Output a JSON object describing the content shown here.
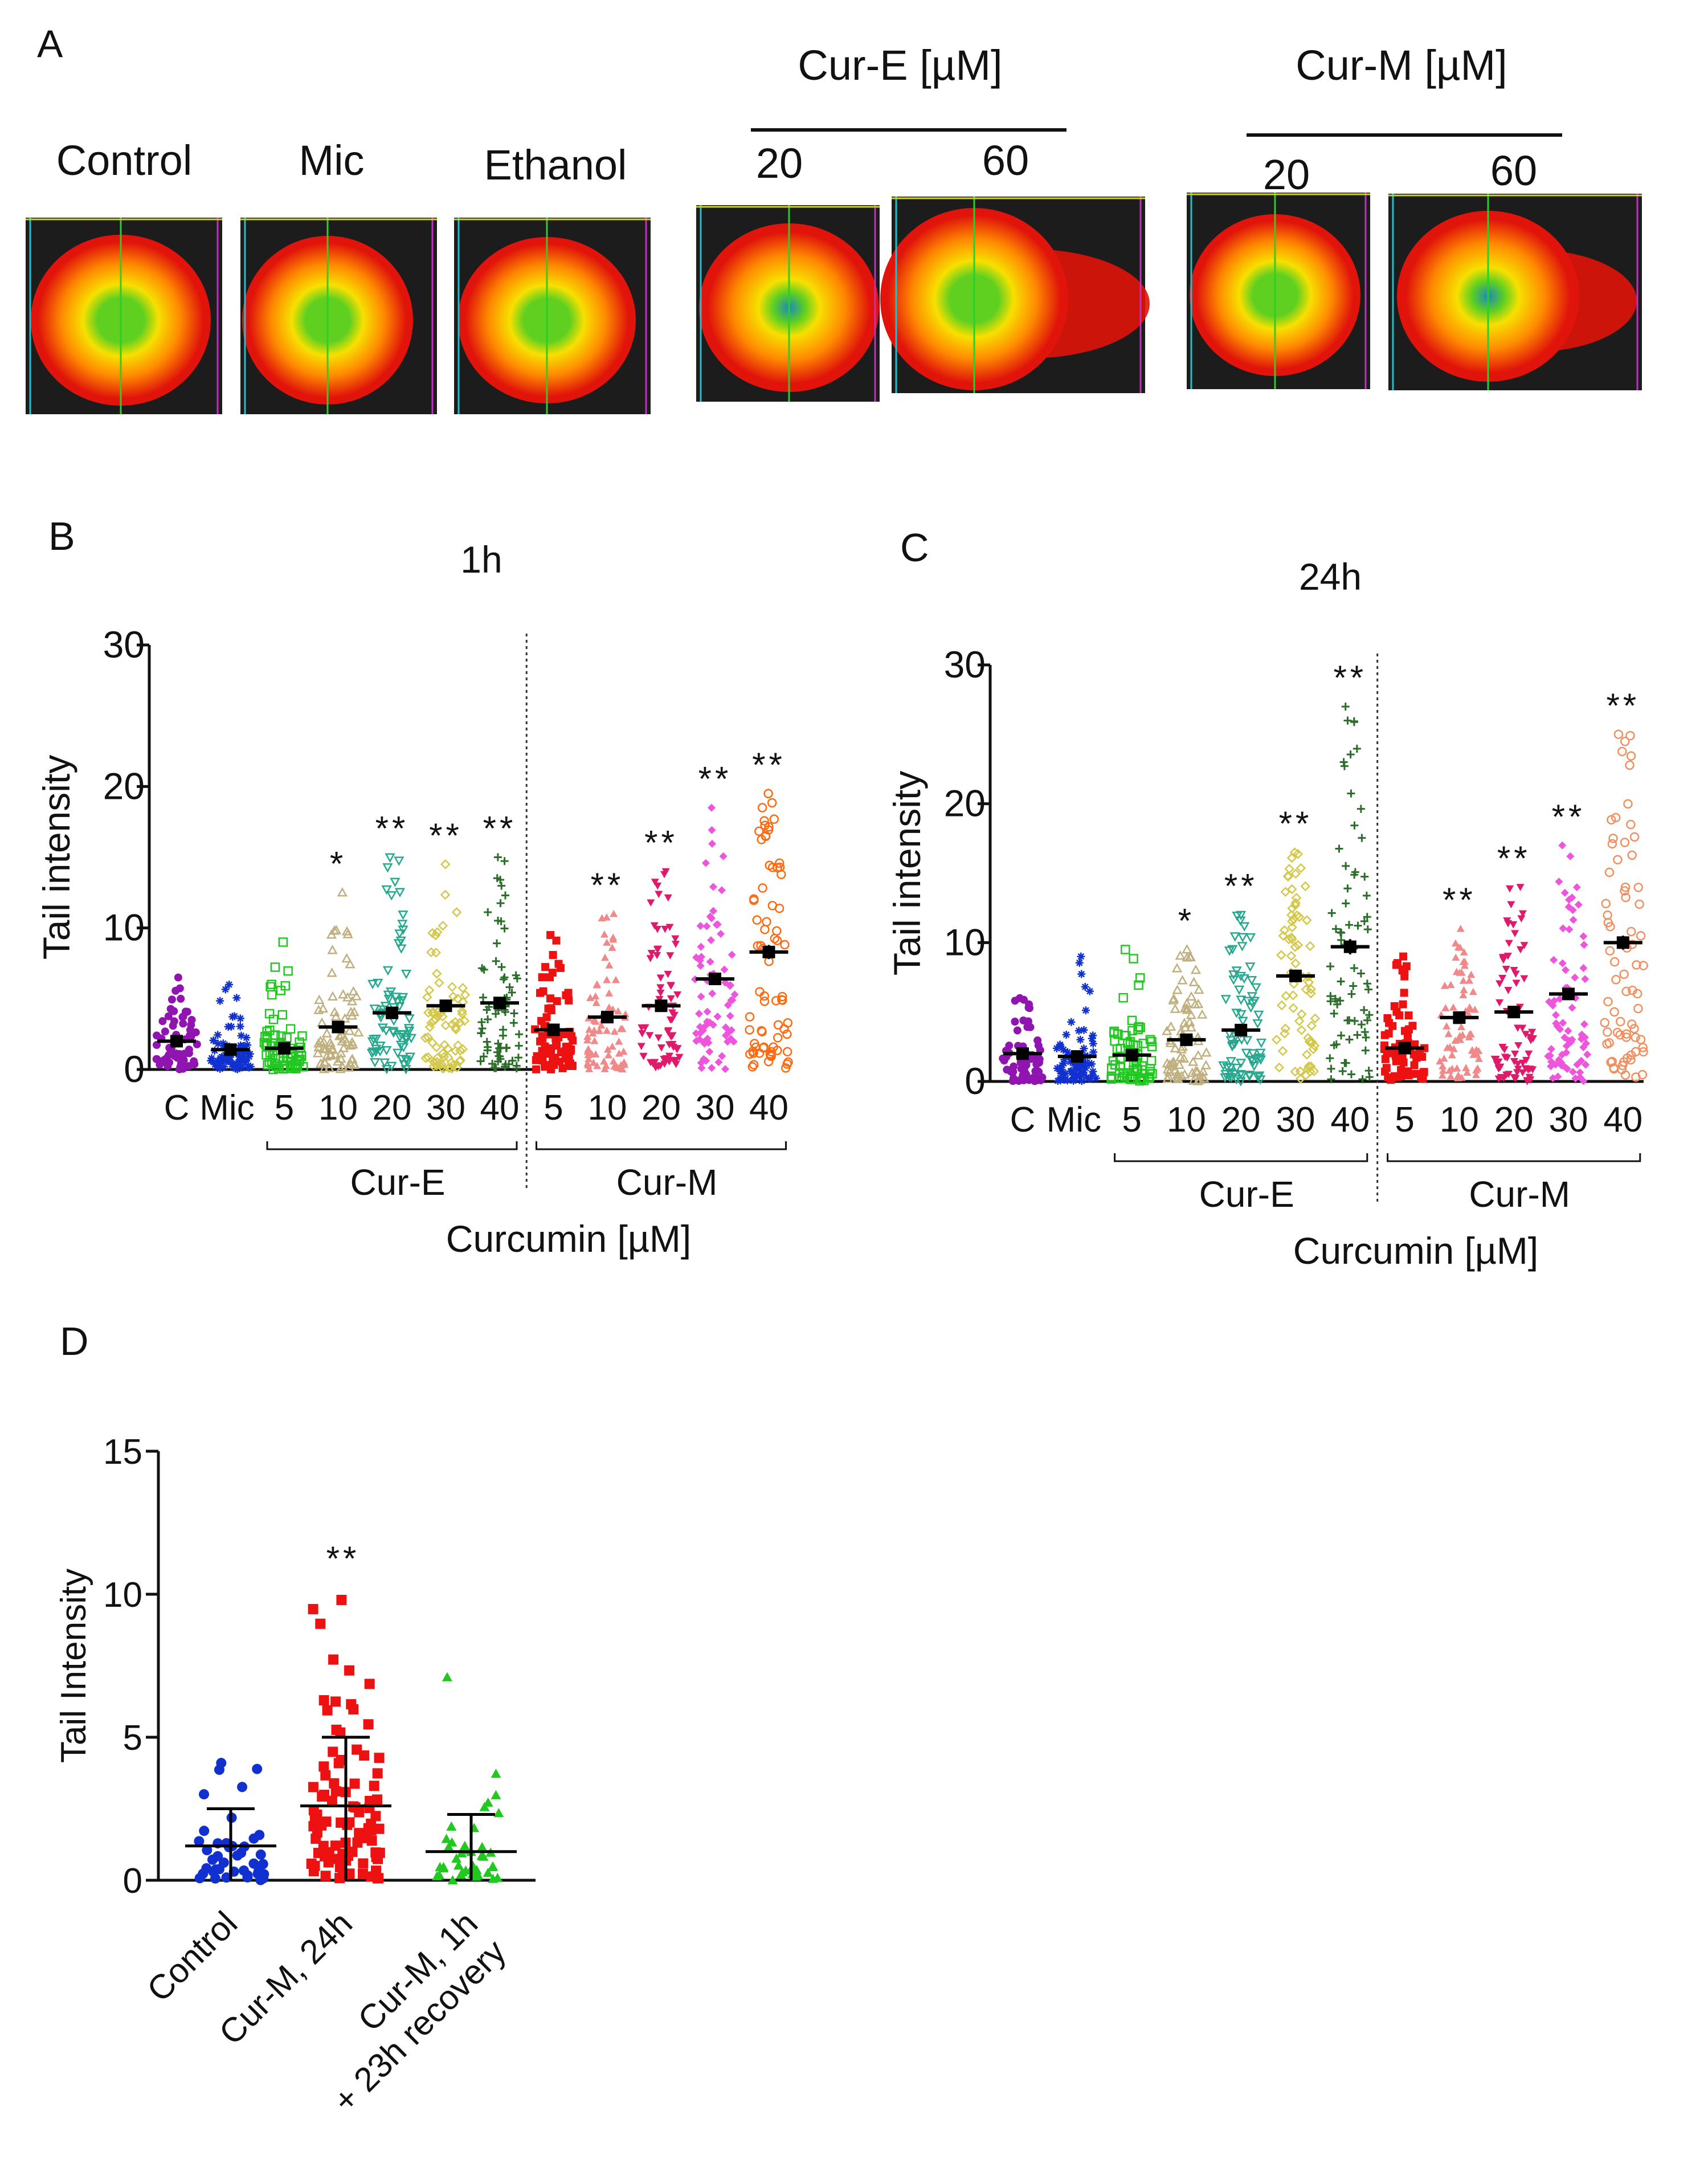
{
  "panel_a": {
    "label": "A",
    "group_left": [
      "Control",
      "Mic",
      "Ethanol"
    ],
    "cur_e": {
      "title": "Cur-E [µM]",
      "doses": [
        "20",
        "60"
      ]
    },
    "cur_m": {
      "title": "Cur-M [µM]",
      "doses": [
        "20",
        "60"
      ]
    },
    "heatmap_colors": {
      "bg": "#1c1c1c",
      "outer": "#e0140a",
      "mid": "#ff8a00",
      "inner": "#f7e000",
      "core": "#5fd020",
      "deep": "#1a8ab8"
    }
  },
  "chart_data": [
    {
      "panel": "B",
      "type": "scatter",
      "title": "1h",
      "ylabel": "Tail  intensity",
      "xlabel": "Curcumin [µM]",
      "ylim": [
        0,
        30
      ],
      "yticks": [
        "0",
        "10",
        "20",
        "30"
      ],
      "categories": [
        "C",
        "Mic",
        "5",
        "10",
        "20",
        "30",
        "40",
        "5",
        "10",
        "20",
        "30",
        "40"
      ],
      "groups": [
        {
          "name": "Cur-E",
          "from": 2,
          "to": 6
        },
        {
          "name": "Cur-M",
          "from": 7,
          "to": 11
        }
      ],
      "series": [
        {
          "name": "C",
          "mean": 2.0,
          "sem": 0.25,
          "max": 6.5,
          "color": "#8f14b0",
          "marker": "dot",
          "sig": ""
        },
        {
          "name": "Mic",
          "mean": 1.4,
          "sem": 0.2,
          "max": 6.0,
          "color": "#1030d0",
          "marker": "star",
          "sig": ""
        },
        {
          "name": "Cur-E 5",
          "mean": 1.5,
          "sem": 0.2,
          "max": 9.0,
          "color": "#20c820",
          "marker": "square-open",
          "sig": ""
        },
        {
          "name": "Cur-E 10",
          "mean": 3.0,
          "sem": 0.3,
          "max": 12.5,
          "color": "#c0b080",
          "marker": "triangle-open",
          "sig": "*"
        },
        {
          "name": "Cur-E 20",
          "mean": 4.0,
          "sem": 0.35,
          "max": 15.0,
          "color": "#26a88e",
          "marker": "triangle-down-open",
          "sig": "**"
        },
        {
          "name": "Cur-E 30",
          "mean": 4.5,
          "sem": 0.4,
          "max": 14.5,
          "color": "#d4c84a",
          "marker": "diamond-open",
          "sig": "**"
        },
        {
          "name": "Cur-E 40",
          "mean": 4.7,
          "sem": 0.4,
          "max": 15.0,
          "color": "#2a6e2a",
          "marker": "plus",
          "sig": "**"
        },
        {
          "name": "Cur-M 5",
          "mean": 2.8,
          "sem": 0.3,
          "max": 9.5,
          "color": "#ee1111",
          "marker": "square",
          "sig": ""
        },
        {
          "name": "Cur-M 10",
          "mean": 3.7,
          "sem": 0.3,
          "max": 11.0,
          "color": "#f08a8a",
          "marker": "triangle",
          "sig": "**"
        },
        {
          "name": "Cur-M 20",
          "mean": 4.5,
          "sem": 0.4,
          "max": 14.0,
          "color": "#e01a6a",
          "marker": "triangle-down",
          "sig": "**"
        },
        {
          "name": "Cur-M 30",
          "mean": 6.4,
          "sem": 0.4,
          "max": 18.5,
          "color": "#ee55dd",
          "marker": "diamond",
          "sig": "**"
        },
        {
          "name": "Cur-M 40",
          "mean": 8.3,
          "sem": 0.5,
          "max": 19.5,
          "color": "#ff6a10",
          "marker": "circle-open",
          "sig": "**"
        }
      ]
    },
    {
      "panel": "C",
      "type": "scatter",
      "title": "24h",
      "ylabel": "Tail  intensity",
      "xlabel": "Curcumin [µM]",
      "ylim": [
        0,
        30
      ],
      "yticks": [
        "0",
        "10",
        "20",
        "30"
      ],
      "categories": [
        "C",
        "Mic",
        "5",
        "10",
        "20",
        "30",
        "40",
        "5",
        "10",
        "20",
        "30",
        "40"
      ],
      "groups": [
        {
          "name": "Cur-E",
          "from": 2,
          "to": 6
        },
        {
          "name": "Cur-M",
          "from": 7,
          "to": 11
        }
      ],
      "series": [
        {
          "name": "C",
          "mean": 2.0,
          "sem": 0.25,
          "max": 6.0,
          "color": "#8f14b0",
          "marker": "dot",
          "sig": ""
        },
        {
          "name": "Mic",
          "mean": 1.8,
          "sem": 0.25,
          "max": 9.0,
          "color": "#1030d0",
          "marker": "star",
          "sig": ""
        },
        {
          "name": "Cur-E 5",
          "mean": 1.9,
          "sem": 0.25,
          "max": 9.5,
          "color": "#20c820",
          "marker": "square-open",
          "sig": ""
        },
        {
          "name": "Cur-E 10",
          "mean": 3.0,
          "sem": 0.3,
          "max": 9.5,
          "color": "#c0b080",
          "marker": "triangle-open",
          "sig": "*"
        },
        {
          "name": "Cur-E 20",
          "mean": 3.7,
          "sem": 0.35,
          "max": 12.0,
          "color": "#26a88e",
          "marker": "triangle-down-open",
          "sig": "**"
        },
        {
          "name": "Cur-E 30",
          "mean": 7.6,
          "sem": 0.45,
          "max": 16.5,
          "color": "#d4c84a",
          "marker": "diamond-open",
          "sig": "**"
        },
        {
          "name": "Cur-E 40",
          "mean": 9.7,
          "sem": 0.55,
          "max": 27.0,
          "color": "#2a6e2a",
          "marker": "plus",
          "sig": "**"
        },
        {
          "name": "Cur-M 5",
          "mean": 2.4,
          "sem": 0.3,
          "max": 9.0,
          "color": "#ee1111",
          "marker": "square",
          "sig": ""
        },
        {
          "name": "Cur-M 10",
          "mean": 4.6,
          "sem": 0.35,
          "max": 11.0,
          "color": "#f08a8a",
          "marker": "triangle",
          "sig": "**"
        },
        {
          "name": "Cur-M 20",
          "mean": 5.0,
          "sem": 0.4,
          "max": 14.0,
          "color": "#e01a6a",
          "marker": "triangle-down",
          "sig": "**"
        },
        {
          "name": "Cur-M 30",
          "mean": 6.3,
          "sem": 0.45,
          "max": 17.0,
          "color": "#ee55dd",
          "marker": "diamond",
          "sig": "**"
        },
        {
          "name": "Cur-M 40",
          "mean": 10.0,
          "sem": 0.5,
          "max": 25.0,
          "color": "#f09060",
          "marker": "circle-open",
          "sig": "**"
        }
      ]
    },
    {
      "panel": "D",
      "type": "scatter",
      "title": "",
      "ylabel": "Tail Intensity",
      "ylim": [
        0,
        15
      ],
      "yticks": [
        "0",
        "5",
        "10",
        "15"
      ],
      "categories": [
        "Control",
        "Cur-M, 24h",
        "Cur-M, 1h\n+ 23h recovery"
      ],
      "series": [
        {
          "name": "Control",
          "mean": 1.2,
          "sd": 1.3,
          "max": 4.1,
          "color": "#1030d0",
          "marker": "dot",
          "sig": ""
        },
        {
          "name": "Cur-M, 24h",
          "mean": 2.6,
          "sd": 2.4,
          "max": 9.8,
          "color": "#ee1111",
          "marker": "square",
          "sig": "**"
        },
        {
          "name": "Cur-M, 1h + 23h recovery",
          "mean": 1.0,
          "sd": 1.3,
          "max": 7.1,
          "color": "#20c820",
          "marker": "triangle",
          "sig": ""
        }
      ]
    }
  ]
}
